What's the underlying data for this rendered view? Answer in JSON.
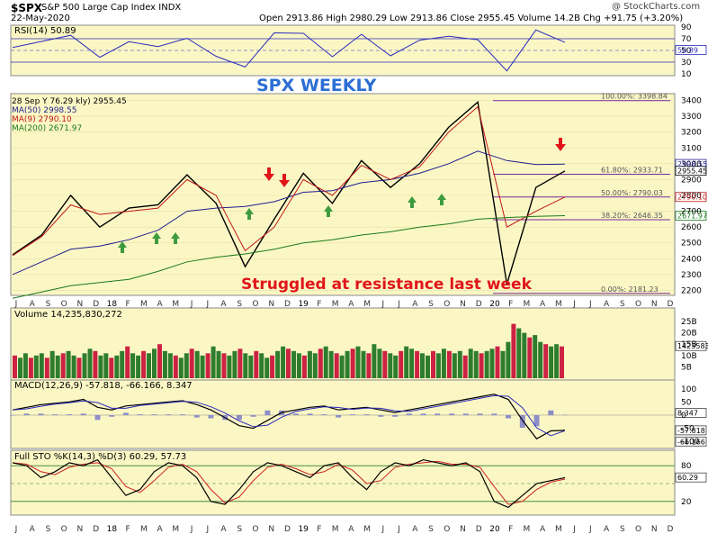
{
  "header": {
    "symbol": "$SPX",
    "name": "S&P 500 Large Cap Index INDX",
    "date": "22-May-2020",
    "ohlc": "Open 2913.86  High 2980.29  Low 2913.86  Close 2955.45  Volume 14.2B  Chg +91.75 (+3.20%)",
    "watermark": "@ StockCharts.com"
  },
  "panels": {
    "rsi": {
      "label": "RSI(14) 50.89",
      "value_tag": "50.89",
      "ticks": [
        "90",
        "70",
        "50",
        "30",
        "10"
      ],
      "color": "#2b2bbd"
    },
    "price": {
      "title": "SPX WEEKLY",
      "annotation": "Struggled at resistance last week",
      "legend": [
        "28 Sep Y 76.29  kly) 2955.45",
        "MA(50) 2998.55",
        "MA(9) 2790.10",
        "MA(200) 2671.97"
      ],
      "ticks": [
        "3400",
        "3300",
        "3200",
        "3100",
        "3000",
        "2900",
        "2800",
        "2700",
        "2600",
        "2500",
        "2400",
        "2300",
        "2200"
      ],
      "fib_labels": [
        "100.00%: 3398.84",
        "61.80%: 2933.71",
        "50.00%: 2790.03",
        "38.20%: 2646.35",
        "0.00%: 2181.23"
      ],
      "tags": [
        "2998.55",
        "2955.45",
        "2790.10",
        "2671.97"
      ]
    },
    "volume": {
      "label": "Volume 14,235,830,272",
      "ticks": [
        "25B",
        "20B",
        "15B",
        "10B",
        "5B"
      ],
      "tag": "14235830272"
    },
    "macd": {
      "label": "MACD(12,26,9) -57.818, -66.166, 8.347",
      "ticks": [
        "100",
        "50",
        "0",
        "-50",
        "-100"
      ],
      "tags": [
        "8.347",
        "-57.818",
        "-66.166"
      ]
    },
    "sto": {
      "label": "Full STO %K(14,3) %D(3) 60.29, 57.73",
      "ticks": [
        "80",
        "20"
      ],
      "tag": "60.29"
    }
  },
  "x_axis_labels": [
    "J",
    "A",
    "S",
    "O",
    "N",
    "D",
    "18",
    "F",
    "M",
    "A",
    "M",
    "J",
    "J",
    "A",
    "S",
    "O",
    "N",
    "D",
    "19",
    "F",
    "M",
    "A",
    "M",
    "J",
    "J",
    "A",
    "S",
    "O",
    "N",
    "D",
    "20",
    "F",
    "M",
    "A",
    "M",
    "J",
    "J",
    "A",
    "S",
    "O",
    "N",
    "D"
  ],
  "chart_data": {
    "type": "line",
    "title": "SPX WEEKLY",
    "x": [
      "2017-07",
      "2017-10",
      "2018-01",
      "2018-02",
      "2018-03",
      "2018-06",
      "2018-09",
      "2018-10",
      "2018-12",
      "2019-01",
      "2019-04",
      "2019-05",
      "2019-07",
      "2019-08",
      "2019-10",
      "2019-12",
      "2020-02",
      "2020-03",
      "2020-04",
      "2020-05"
    ],
    "series": [
      {
        "name": "SPX",
        "values": [
          2425,
          2550,
          2800,
          2600,
          2720,
          2740,
          2930,
          2750,
          2350,
          2650,
          2940,
          2750,
          3020,
          2850,
          3000,
          3230,
          3390,
          2240,
          2850,
          2955
        ]
      },
      {
        "name": "MA(50)",
        "values": [
          2300,
          2380,
          2460,
          2480,
          2520,
          2580,
          2700,
          2720,
          2730,
          2760,
          2820,
          2830,
          2880,
          2900,
          2940,
          3000,
          3080,
          3020,
          2995,
          2998
        ]
      },
      {
        "name": "MA(9)",
        "values": [
          2420,
          2540,
          2740,
          2680,
          2700,
          2720,
          2900,
          2800,
          2450,
          2600,
          2900,
          2800,
          2990,
          2900,
          2980,
          3200,
          3360,
          2600,
          2700,
          2790
        ]
      },
      {
        "name": "MA(200)",
        "values": [
          2150,
          2190,
          2230,
          2250,
          2270,
          2320,
          2380,
          2410,
          2430,
          2460,
          2500,
          2520,
          2550,
          2570,
          2600,
          2620,
          2650,
          2660,
          2668,
          2672
        ]
      }
    ],
    "fib_levels": [
      {
        "label": "100.00%: 3398.84",
        "value": 3398.84
      },
      {
        "label": "61.80%: 2933.71",
        "value": 2933.71
      },
      {
        "label": "50.00%: 2790.03",
        "value": 2790.03
      },
      {
        "label": "38.20%: 2646.35",
        "value": 2646.35
      },
      {
        "label": "0.00%: 2181.23",
        "value": 2181.23
      }
    ],
    "ylim": [
      2180,
      3420
    ],
    "volume_b": [
      10,
      9,
      11,
      9,
      10,
      11,
      9,
      12,
      10,
      11,
      12,
      10,
      9,
      11,
      13,
      12,
      10,
      11,
      9,
      10,
      12,
      14,
      11,
      10,
      12,
      11,
      13,
      15,
      12,
      11,
      10,
      9,
      11,
      13,
      12,
      10,
      11,
      14,
      12,
      11,
      10,
      12,
      13,
      11,
      10,
      12,
      11,
      9,
      10,
      12,
      14,
      13,
      12,
      11,
      10,
      12,
      11,
      13,
      14,
      12,
      11,
      10,
      12,
      13,
      14,
      12,
      11,
      15,
      13,
      12,
      11,
      10,
      12,
      14,
      13,
      12,
      11,
      10,
      12,
      11,
      13,
      12,
      11,
      12,
      10,
      13,
      12,
      11,
      12,
      13,
      14,
      12,
      16,
      24,
      22,
      20,
      18,
      19,
      16,
      15,
      14,
      15,
      14
    ],
    "macd": [
      20,
      30,
      40,
      45,
      50,
      60,
      30,
      20,
      35,
      40,
      45,
      50,
      55,
      40,
      20,
      -10,
      -40,
      -50,
      -20,
      10,
      20,
      30,
      35,
      20,
      25,
      30,
      20,
      10,
      20,
      30,
      40,
      50,
      60,
      70,
      80,
      60,
      -20,
      -90,
      -60,
      -58
    ],
    "sto_k": [
      85,
      80,
      60,
      70,
      85,
      80,
      90,
      60,
      30,
      40,
      70,
      85,
      80,
      60,
      20,
      15,
      40,
      70,
      85,
      80,
      70,
      60,
      80,
      85,
      60,
      40,
      70,
      85,
      80,
      90,
      85,
      80,
      85,
      70,
      20,
      10,
      30,
      50,
      55,
      60
    ]
  }
}
